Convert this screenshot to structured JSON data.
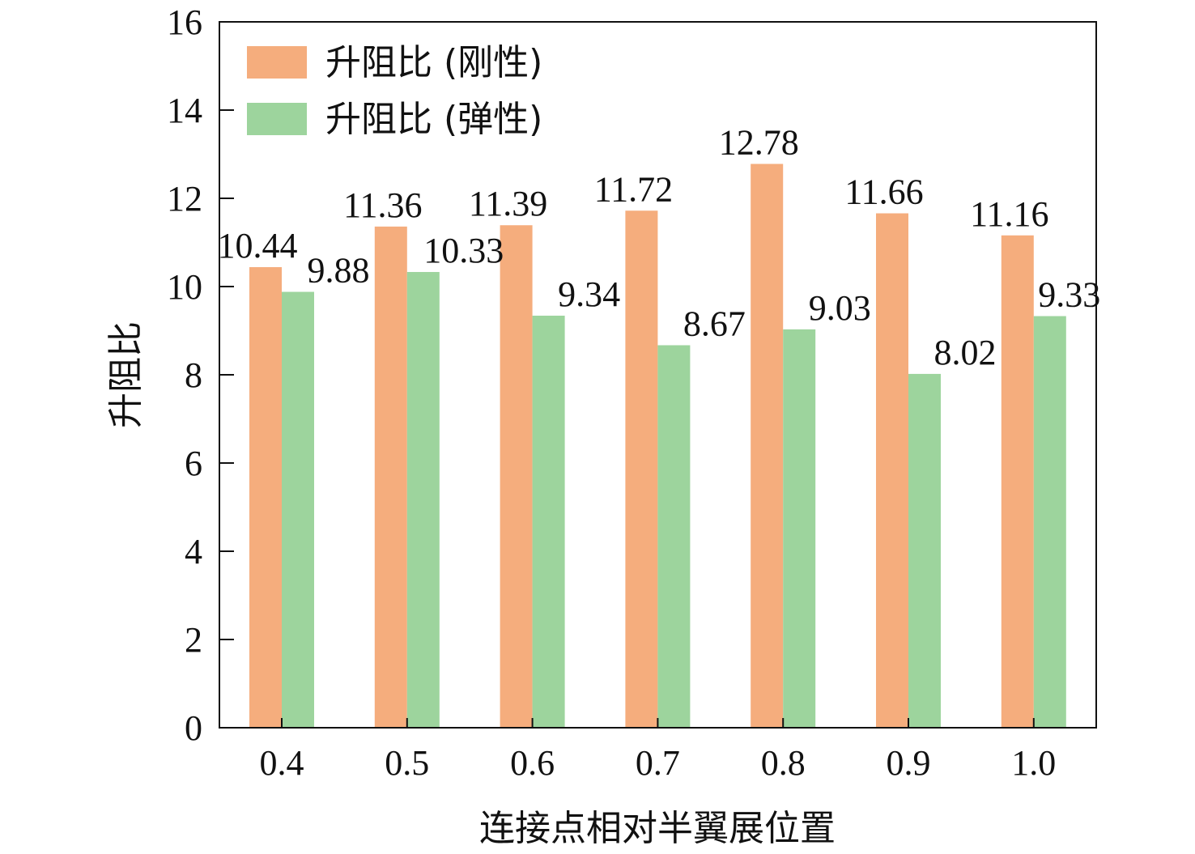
{
  "chart_data": {
    "type": "bar",
    "categories": [
      "0.4",
      "0.5",
      "0.6",
      "0.7",
      "0.8",
      "0.9",
      "1.0"
    ],
    "series": [
      {
        "name": "升阻比 (刚性)",
        "values": [
          10.44,
          11.36,
          11.39,
          11.72,
          12.78,
          11.66,
          11.16
        ],
        "labels": [
          "10.44",
          "11.36",
          "11.39",
          "11.72",
          "12.78",
          "11.66",
          "11.16"
        ],
        "color": "#F5AD7D"
      },
      {
        "name": "升阻比 (弹性)",
        "values": [
          9.88,
          10.33,
          9.34,
          8.67,
          9.03,
          8.02,
          9.33
        ],
        "labels": [
          "9.88",
          "10.33",
          "9.34",
          "8.67",
          "9.03",
          "8.02",
          "9.33"
        ],
        "color": "#9DD49D"
      }
    ],
    "xlabel": "连接点相对半翼展位置",
    "ylabel": "升阻比",
    "ylim": [
      0,
      16
    ],
    "yticks": [
      "0",
      "2",
      "4",
      "6",
      "8",
      "10",
      "12",
      "14",
      "16"
    ],
    "grid": false,
    "legend_position": "top-left"
  }
}
